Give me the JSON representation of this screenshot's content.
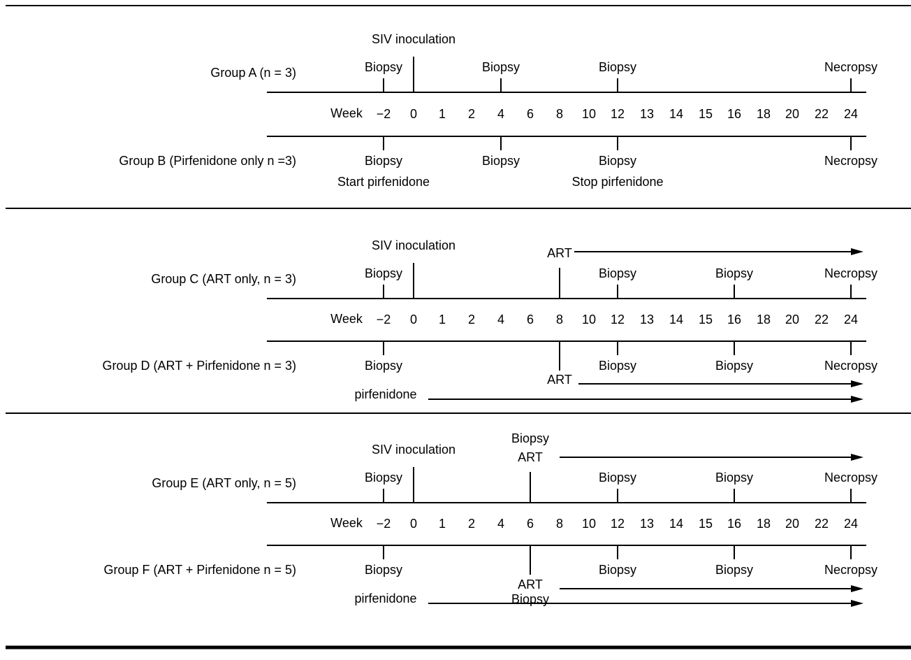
{
  "axis": {
    "label": "Week",
    "ticks": [
      "−2",
      "0",
      "1",
      "2",
      "4",
      "6",
      "8",
      "10",
      "12",
      "13",
      "14",
      "15",
      "16",
      "18",
      "20",
      "22",
      "24"
    ]
  },
  "panels": [
    {
      "top_group": {
        "label": "Group A (n = 3)",
        "events": [
          {
            "week": "−2",
            "label": "Biopsy"
          },
          {
            "week": "4",
            "label": "Biopsy"
          },
          {
            "week": "12",
            "label": "Biopsy"
          },
          {
            "week": "24",
            "label": "Necropsy"
          }
        ],
        "inoculation": {
          "week": "0",
          "label": "SIV inoculation"
        }
      },
      "bottom_group": {
        "label": "Group B (Pirfenidone only n =3)",
        "events": [
          {
            "week": "−2",
            "lines": [
              "Biopsy",
              "Start pirfenidone"
            ]
          },
          {
            "week": "4",
            "lines": [
              "Biopsy"
            ]
          },
          {
            "week": "12",
            "lines": [
              "Biopsy",
              "Stop pirfenidone"
            ]
          },
          {
            "week": "24",
            "lines": [
              "Necropsy"
            ]
          }
        ]
      }
    },
    {
      "top_group": {
        "label": "Group C (ART only, n = 3)",
        "events": [
          {
            "week": "−2",
            "label": "Biopsy"
          },
          {
            "week": "12",
            "label": "Biopsy"
          },
          {
            "week": "16",
            "label": "Biopsy"
          },
          {
            "week": "24",
            "label": "Necropsy"
          }
        ],
        "inoculation": {
          "week": "0",
          "label": "SIV inoculation"
        },
        "treatment": {
          "start_week": "8",
          "label": "ART"
        }
      },
      "bottom_group": {
        "label": "Group D (ART + Pirfenidone n = 3)",
        "events": [
          {
            "week": "−2",
            "lines": [
              "Biopsy"
            ]
          },
          {
            "week": "12",
            "lines": [
              "Biopsy"
            ]
          },
          {
            "week": "16",
            "lines": [
              "Biopsy"
            ]
          },
          {
            "week": "24",
            "lines": [
              "Necropsy"
            ]
          }
        ],
        "treatment": {
          "start_week": "8",
          "label": "ART"
        },
        "pirfenidone_label": "pirfenidone"
      }
    },
    {
      "top_group": {
        "label": "Group E (ART only, n = 5)",
        "events": [
          {
            "week": "−2",
            "label": "Biopsy"
          },
          {
            "week": "12",
            "label": "Biopsy"
          },
          {
            "week": "16",
            "label": "Biopsy"
          },
          {
            "week": "24",
            "label": "Necropsy"
          }
        ],
        "inoculation": {
          "week": "0",
          "label": "SIV inoculation"
        },
        "treatment": {
          "start_week": "6",
          "lines": [
            "Biopsy",
            "ART"
          ]
        }
      },
      "bottom_group": {
        "label": "Group F (ART + Pirfenidone n = 5)",
        "events": [
          {
            "week": "−2",
            "lines": [
              "Biopsy"
            ]
          },
          {
            "week": "12",
            "lines": [
              "Biopsy"
            ]
          },
          {
            "week": "16",
            "lines": [
              "Biopsy"
            ]
          },
          {
            "week": "24",
            "lines": [
              "Necropsy"
            ]
          }
        ],
        "treatment": {
          "start_week": "6",
          "lines": [
            "ART",
            "Biopsy"
          ]
        },
        "pirfenidone_label": "pirfenidone"
      }
    }
  ]
}
